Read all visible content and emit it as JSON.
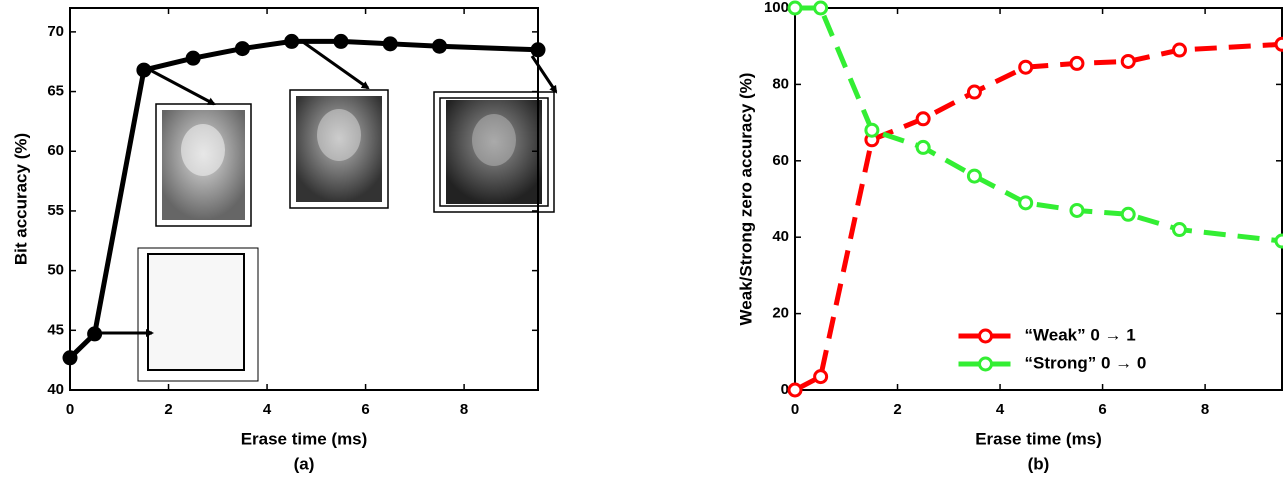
{
  "chart_data": [
    {
      "type": "line",
      "xlabel": "Erase time (ms)",
      "ylabel": "Bit accuracy (%)",
      "caption": "(a)",
      "x": [
        0,
        0.5,
        1.5,
        2.5,
        3.5,
        4.5,
        5.5,
        6.5,
        7.5,
        9.5
      ],
      "series": [
        {
          "color": "#000000",
          "linestyle": "solid",
          "values": [
            42.7,
            44.7,
            66.8,
            67.8,
            68.6,
            69.2,
            69.2,
            69.0,
            68.8,
            68.5
          ]
        }
      ],
      "xlim": [
        0,
        9.5
      ],
      "xticks": [
        0,
        2,
        4,
        6,
        8
      ],
      "ylim": [
        40,
        72
      ],
      "yticks": [
        40,
        45,
        50,
        55,
        60,
        65,
        70
      ]
    },
    {
      "type": "line",
      "xlabel": "Erase time (ms)",
      "ylabel": "Weak/Strong zero accuracy (%)",
      "caption": "(b)",
      "x": [
        0,
        0.5,
        1.5,
        2.5,
        3.5,
        4.5,
        5.5,
        6.5,
        7.5,
        9.5
      ],
      "series": [
        {
          "name": "“Weak” 0 → 1",
          "color": "#ff0000",
          "linestyle": "dashed",
          "values": [
            0,
            3.5,
            65.5,
            71,
            78,
            84.5,
            85.5,
            86,
            89,
            90.5
          ]
        },
        {
          "name": "“Strong” 0 → 0",
          "color": "#33ee33",
          "linestyle": "dashed",
          "values": [
            100,
            100,
            68,
            63.5,
            56,
            49,
            47,
            46,
            42,
            39
          ]
        }
      ],
      "xlim": [
        0,
        9.5
      ],
      "xticks": [
        0,
        2,
        4,
        6,
        8
      ],
      "ylim": [
        0,
        100
      ],
      "yticks": [
        0,
        20,
        40,
        60,
        80,
        100
      ],
      "legend": "lower center"
    }
  ]
}
